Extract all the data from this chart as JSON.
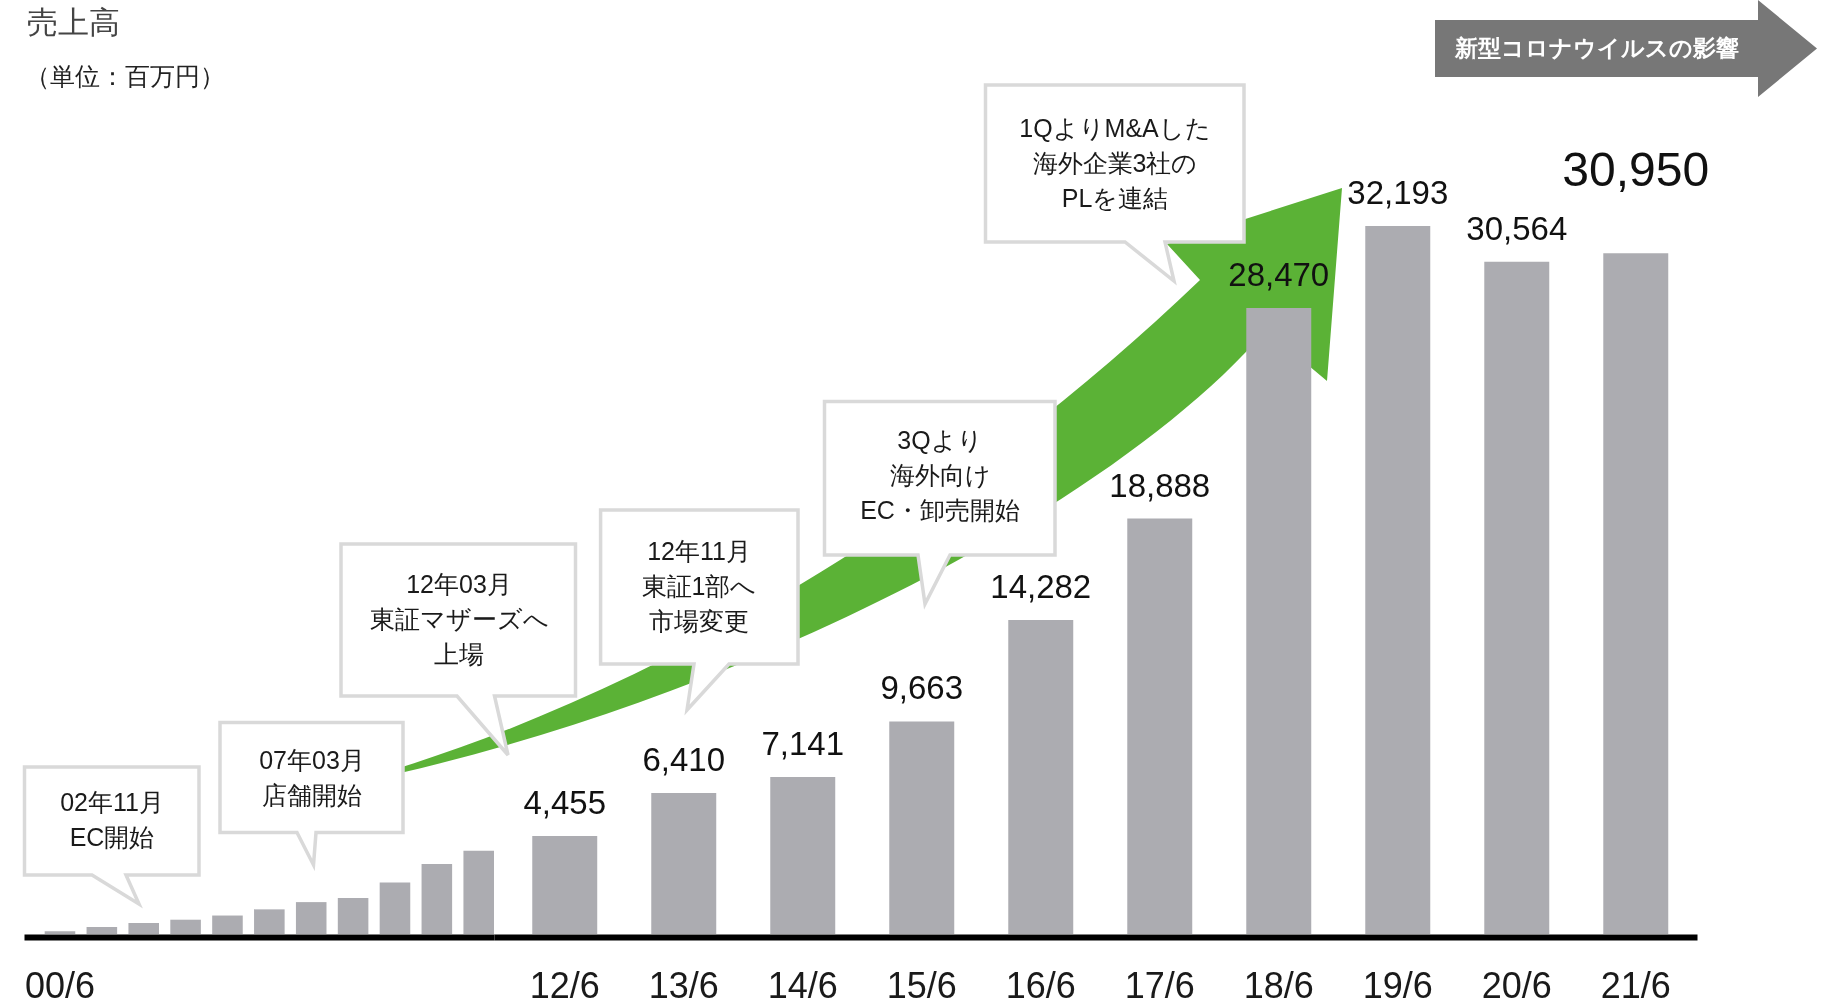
{
  "chart_data": {
    "type": "bar",
    "title": "売上高",
    "subtitle": "（単位：百万円）",
    "categories": [
      "00/6",
      null,
      null,
      null,
      null,
      null,
      null,
      null,
      null,
      null,
      null,
      null,
      "12/6",
      "13/6",
      "14/6",
      "15/6",
      "16/6",
      "17/6",
      "18/6",
      "19/6",
      "20/6",
      "21/6"
    ],
    "values": [
      130,
      320,
      500,
      650,
      840,
      1120,
      1450,
      1640,
      2340,
      3180,
      3790,
      null,
      4455,
      6410,
      7141,
      9663,
      14282,
      18888,
      28470,
      32193,
      30564,
      30950
    ],
    "value_labels": [
      null,
      null,
      null,
      null,
      null,
      null,
      null,
      null,
      null,
      null,
      null,
      null,
      "4,455",
      "6,410",
      "7,141",
      "9,663",
      "14,282",
      "18,888",
      "28,470",
      "32,193",
      "30,564",
      "30,950"
    ],
    "color": "#acacb1",
    "annotations": [
      "02年11月EC開始",
      "07年03月店舗開始",
      "12年03月東証マザーズへ上場",
      "12年11月東証1部へ市場変更",
      "3Qより海外向けEC・卸売開始",
      "1QよりM&Aした海外企業3社のPLを連結",
      "新型コロナウイルスの影響"
    ]
  }
}
